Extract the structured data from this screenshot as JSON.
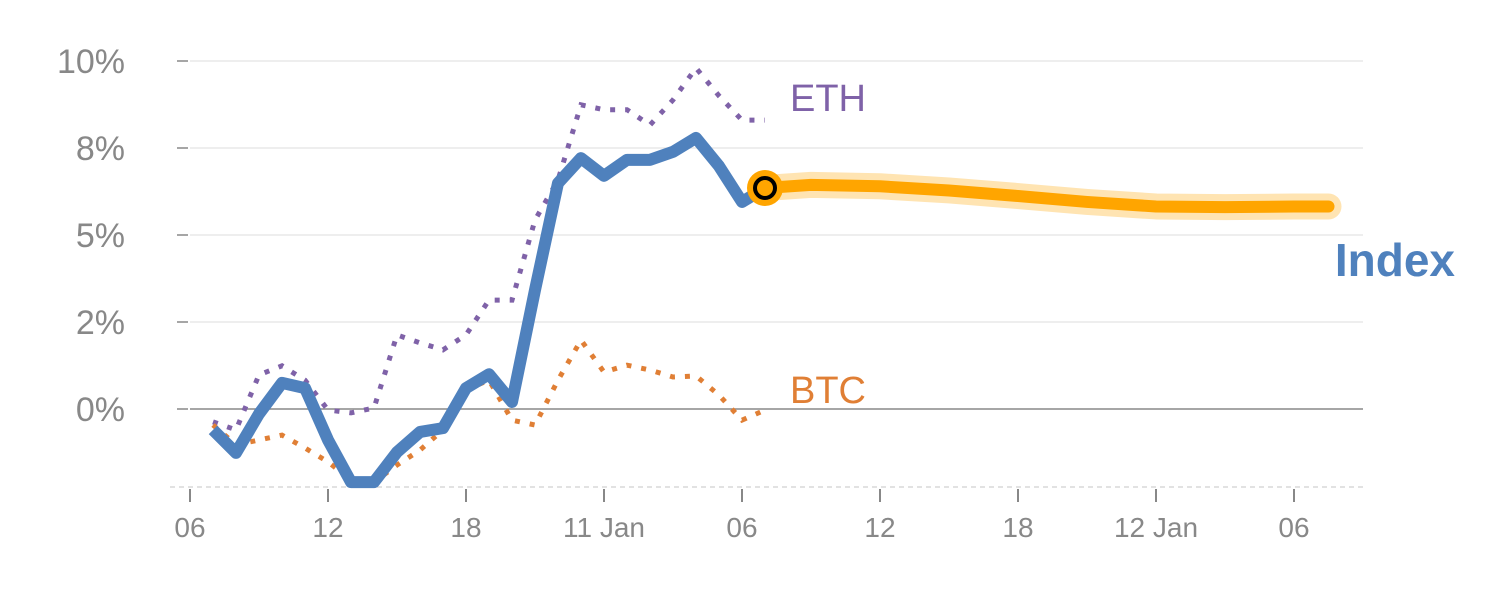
{
  "chart_data": {
    "type": "line",
    "title": "",
    "xlabel": "",
    "ylabel": "",
    "ylim": [
      -2.2,
      10
    ],
    "xlim": [
      0,
      50.5
    ],
    "grid": true,
    "y_ticks": [
      {
        "value": 0,
        "label": "0%"
      },
      {
        "value": 2.5,
        "label": "2%"
      },
      {
        "value": 5,
        "label": "5%"
      },
      {
        "value": 7.5,
        "label": "8%"
      },
      {
        "value": 10,
        "label": "10%"
      }
    ],
    "x_ticks": [
      {
        "value": 0,
        "label": "06"
      },
      {
        "value": 6,
        "label": "12"
      },
      {
        "value": 12,
        "label": "18"
      },
      {
        "value": 18,
        "label": "11 Jan"
      },
      {
        "value": 24,
        "label": "06"
      },
      {
        "value": 30,
        "label": "12"
      },
      {
        "value": 36,
        "label": "18"
      },
      {
        "value": 42,
        "label": "12 Jan"
      },
      {
        "value": 48,
        "label": "06"
      }
    ],
    "series": [
      {
        "name": "ETH",
        "style": "dotted",
        "color": "#7f62a8",
        "x": [
          1,
          2,
          3,
          4,
          5,
          6,
          7,
          8,
          9,
          10,
          11,
          12,
          13,
          14,
          15,
          16,
          17,
          18,
          19,
          20,
          21,
          22,
          23,
          24,
          25
        ],
        "values": [
          -0.37,
          -0.6,
          0.98,
          1.24,
          0.83,
          -0.03,
          -0.11,
          0.03,
          2.13,
          1.9,
          1.7,
          2.13,
          3.13,
          3.13,
          5.43,
          6.58,
          8.74,
          8.6,
          8.6,
          8.16,
          8.88,
          9.8,
          9.0,
          8.3,
          8.3
        ]
      },
      {
        "name": "BTC",
        "style": "dotted",
        "color": "#e07f35",
        "x": [
          1,
          2,
          3,
          4,
          5,
          6,
          7,
          8,
          9,
          10,
          11,
          12,
          13,
          14,
          15,
          16,
          17,
          18,
          19,
          20,
          21,
          22,
          23,
          24,
          25
        ],
        "values": [
          -0.46,
          -1.03,
          -0.89,
          -0.75,
          -1.12,
          -1.52,
          -2.04,
          -2.1,
          -1.61,
          -1.18,
          -0.6,
          0.55,
          0.83,
          -0.32,
          -0.46,
          0.83,
          1.98,
          1.06,
          1.26,
          1.12,
          0.92,
          0.95,
          0.4,
          -0.32,
          -0.03
        ]
      },
      {
        "name": "Index",
        "style": "solid",
        "color": "#4f81bd",
        "x": [
          1,
          2,
          3,
          4,
          5,
          6,
          7,
          8,
          9,
          10,
          11,
          12,
          13,
          14,
          15,
          16,
          17,
          18,
          19,
          20,
          21,
          22,
          23,
          24
        ],
        "values": [
          -0.6,
          -1.26,
          -0.14,
          0.75,
          0.6,
          -0.89,
          -2.1,
          -2.1,
          -1.24,
          -0.66,
          -0.55,
          0.6,
          1.0,
          0.2,
          3.42,
          6.49,
          7.21,
          6.7,
          7.16,
          7.16,
          7.39,
          7.79,
          6.98,
          5.95
        ]
      },
      {
        "name": "Index forecast",
        "style": "band",
        "color": "#ffa500",
        "x": [
          25,
          27,
          30,
          33,
          36,
          39,
          42,
          45,
          48,
          49.5
        ],
        "values": [
          6.35,
          6.44,
          6.4,
          6.28,
          6.12,
          5.95,
          5.82,
          5.8,
          5.82,
          5.82
        ]
      }
    ],
    "labels": {
      "eth": "ETH",
      "btc": "BTC",
      "index": "Index"
    }
  }
}
